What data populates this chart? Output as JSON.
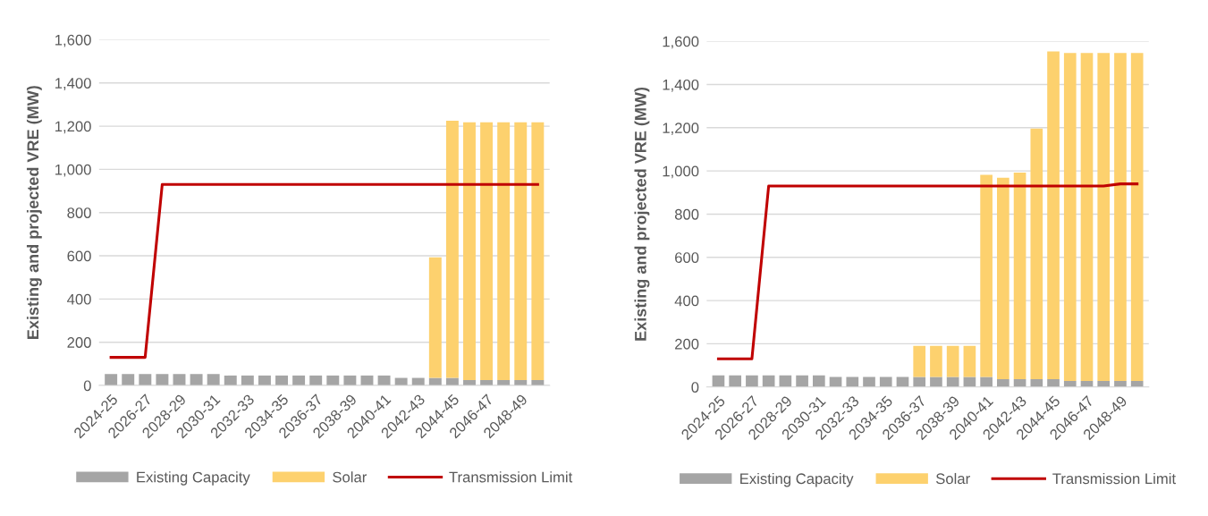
{
  "chart_data": [
    {
      "type": "bar",
      "stacked": true,
      "ylabel": "Existing and projected VRE (MW)",
      "categories": [
        "2024-25",
        null,
        "2026-27",
        null,
        "2028-29",
        null,
        "2030-31",
        null,
        "2032-33",
        null,
        "2034-35",
        null,
        "2036-37",
        null,
        "2038-39",
        null,
        "2040-41",
        null,
        "2042-43",
        null,
        "2044-45",
        null,
        "2046-47",
        null,
        "2048-49",
        null
      ],
      "series": [
        {
          "name": "Existing Capacity",
          "color": "#a5a5a5",
          "values": [
            53,
            53,
            53,
            53,
            53,
            53,
            53,
            46,
            46,
            46,
            46,
            46,
            46,
            46,
            46,
            46,
            46,
            35,
            35,
            35,
            35,
            25,
            25,
            25,
            25,
            25
          ]
        },
        {
          "name": "Solar",
          "color": "#fdd16e",
          "values": [
            0,
            0,
            0,
            0,
            0,
            0,
            0,
            0,
            0,
            0,
            0,
            0,
            0,
            0,
            0,
            0,
            0,
            0,
            0,
            558,
            1190,
            1193,
            1193,
            1193,
            1193,
            1193
          ]
        },
        {
          "name": "Transmission Limit",
          "type": "line",
          "color": "#c00000",
          "values": [
            130,
            130,
            130,
            930,
            930,
            930,
            930,
            930,
            930,
            930,
            930,
            930,
            930,
            930,
            930,
            930,
            930,
            930,
            930,
            930,
            930,
            930,
            930,
            930,
            930,
            930
          ]
        }
      ],
      "ylim": [
        0,
        1600
      ],
      "yticks": [
        {
          "value": 0,
          "label": "0"
        },
        {
          "value": 200,
          "label": "200"
        },
        {
          "value": 400,
          "label": "400"
        },
        {
          "value": 600,
          "label": "600"
        },
        {
          "value": 800,
          "label": "800"
        },
        {
          "value": 1000,
          "label": "1,000"
        },
        {
          "value": 1200,
          "label": "1,200"
        },
        {
          "value": 1400,
          "label": "1,400"
        },
        {
          "value": 1600,
          "label": "1,600"
        }
      ],
      "grid": "y",
      "legend": "bottom"
    },
    {
      "type": "bar",
      "stacked": true,
      "ylabel": "Existing and projected VRE (MW)",
      "categories": [
        "2024-25",
        null,
        "2026-27",
        null,
        "2028-29",
        null,
        "2030-31",
        null,
        "2032-33",
        null,
        "2034-35",
        null,
        "2036-37",
        null,
        "2038-39",
        null,
        "2040-41",
        null,
        "2042-43",
        null,
        "2044-45",
        null,
        "2046-47",
        null,
        "2048-49",
        null
      ],
      "series": [
        {
          "name": "Existing Capacity",
          "color": "#a5a5a5",
          "values": [
            54,
            54,
            54,
            54,
            54,
            54,
            54,
            47,
            47,
            47,
            47,
            47,
            47,
            47,
            47,
            47,
            47,
            36,
            36,
            36,
            36,
            28,
            28,
            28,
            28,
            28
          ]
        },
        {
          "name": "Solar",
          "color": "#fdd16e",
          "values": [
            0,
            0,
            0,
            0,
            0,
            0,
            0,
            0,
            0,
            0,
            0,
            0,
            143,
            143,
            143,
            143,
            935,
            932,
            956,
            1160,
            1517,
            1518,
            1518,
            1518,
            1518,
            1518
          ]
        },
        {
          "name": "Transmission Limit",
          "type": "line",
          "color": "#c00000",
          "values": [
            130,
            130,
            130,
            930,
            930,
            930,
            930,
            930,
            930,
            930,
            930,
            930,
            930,
            930,
            930,
            930,
            930,
            930,
            930,
            930,
            930,
            930,
            930,
            930,
            940,
            940
          ]
        }
      ],
      "ylim": [
        0,
        1600
      ],
      "yticks": [
        {
          "value": 0,
          "label": "0"
        },
        {
          "value": 200,
          "label": "200"
        },
        {
          "value": 400,
          "label": "400"
        },
        {
          "value": 600,
          "label": "600"
        },
        {
          "value": 800,
          "label": "800"
        },
        {
          "value": 1000,
          "label": "1,000"
        },
        {
          "value": 1200,
          "label": "1,200"
        },
        {
          "value": 1400,
          "label": "1,400"
        },
        {
          "value": 1600,
          "label": "1,600"
        }
      ],
      "grid": "y",
      "legend": "bottom"
    }
  ]
}
